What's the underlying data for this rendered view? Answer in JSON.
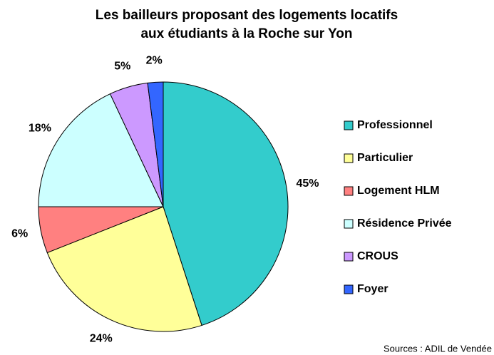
{
  "chart_data": {
    "type": "pie",
    "title": [
      "Les bailleurs proposant des logements locatifs",
      "aux étudiants à la Roche sur Yon"
    ],
    "categories": [
      "Professionnel",
      "Particulier",
      "Logement HLM",
      "Résidence Privée",
      "CROUS",
      "Foyer"
    ],
    "values": [
      45,
      24,
      6,
      18,
      5,
      2
    ],
    "value_labels": [
      "45%",
      "24%",
      "6%",
      "18%",
      "5%",
      "2%"
    ],
    "colors": [
      "#33cccc",
      "#ffff99",
      "#ff8080",
      "#ccffff",
      "#cc99ff",
      "#3366ff"
    ],
    "legend": "right",
    "source": "Sources : ADIL de Vendée"
  }
}
